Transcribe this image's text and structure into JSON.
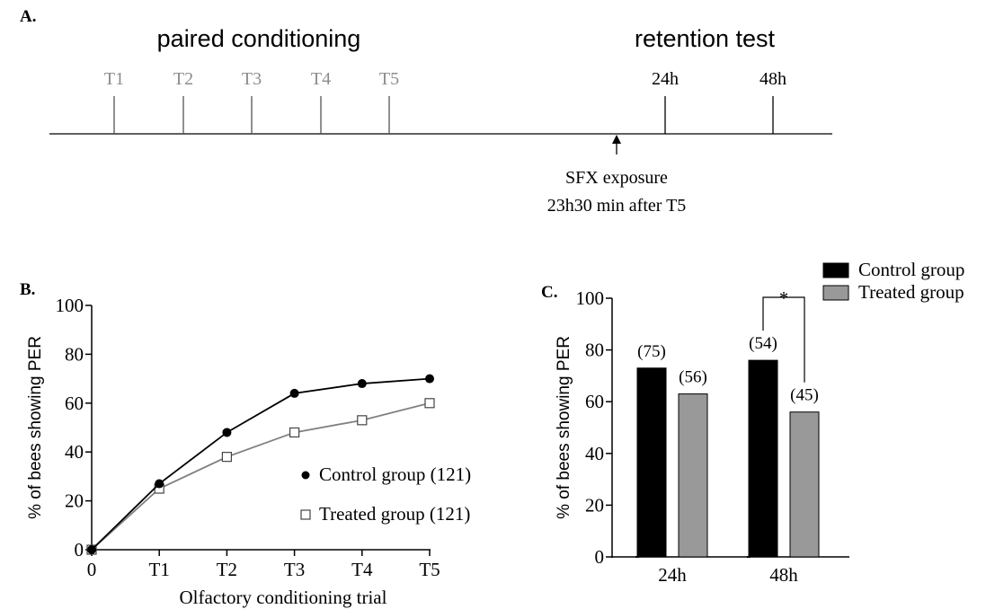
{
  "panel_a": {
    "label": "A.",
    "phase_left": "paired conditioning",
    "phase_right": "retention test",
    "trial_labels": [
      "T1",
      "T2",
      "T3",
      "T4",
      "T5"
    ],
    "test_labels": [
      "24h",
      "48h"
    ],
    "exposure_line1": "SFX exposure",
    "exposure_line2": "23h30 min after T5",
    "colors": {
      "trial": "#8c8c8c",
      "test": "#000000"
    }
  },
  "chart_data": [
    {
      "panel": "B.",
      "type": "line",
      "x": [
        "0",
        "T1",
        "T2",
        "T3",
        "T4",
        "T5"
      ],
      "xlabel": "Olfactory conditioning trial",
      "ylabel": "% of bees showing PER",
      "ylim": [
        0,
        100
      ],
      "yticks": [
        0,
        20,
        40,
        60,
        80,
        100
      ],
      "series": [
        {
          "name": "Control group (121)",
          "values": [
            0,
            27,
            48,
            64,
            68,
            70
          ],
          "color": "#000000",
          "marker": "filled-circle"
        },
        {
          "name": "Treated group (121)",
          "values": [
            0,
            25,
            38,
            48,
            53,
            60
          ],
          "color": "#808080",
          "marker": "open-square"
        }
      ],
      "legend": "bottom-right",
      "grid": false
    },
    {
      "panel": "C.",
      "type": "bar",
      "categories": [
        "24h",
        "48h"
      ],
      "ylabel": "% of bees showing PER",
      "ylim": [
        0,
        100
      ],
      "yticks": [
        0,
        20,
        40,
        60,
        80,
        100
      ],
      "series": [
        {
          "name": "Control group",
          "values": [
            73,
            76
          ],
          "n_labels": [
            "(75)",
            "(54)"
          ],
          "color": "#000000"
        },
        {
          "name": "Treated group",
          "values": [
            63,
            56
          ],
          "n_labels": [
            "(56)",
            "(45)"
          ],
          "color": "#999999"
        }
      ],
      "significance": {
        "category": "48h",
        "label": "*"
      },
      "legend": "top-right",
      "grid": false
    }
  ]
}
